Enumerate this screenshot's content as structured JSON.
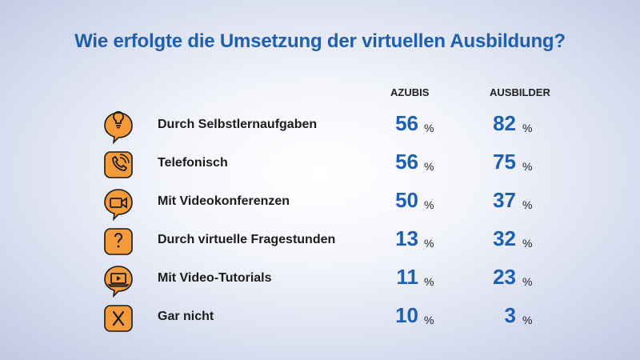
{
  "title": "Wie erfolgte die Umsetzung der virtuellen Ausbildung?",
  "colors": {
    "accent": "#1f5fae",
    "icon_fill": "#f39a3b",
    "icon_stroke": "#1a1a1a"
  },
  "chart_data": {
    "type": "table",
    "title": "Wie erfolgte die Umsetzung der virtuellen Ausbildung?",
    "columns": [
      "AZUBIS",
      "AUSBILDER"
    ],
    "unit": "%",
    "rows": [
      {
        "label": "Durch Selbstlernaufgaben",
        "icon": "lightbulb-icon",
        "azubis": 56,
        "ausbilder": 82
      },
      {
        "label": "Telefonisch",
        "icon": "phone-icon",
        "azubis": 56,
        "ausbilder": 75
      },
      {
        "label": "Mit Videokonferenzen",
        "icon": "video-camera-icon",
        "azubis": 50,
        "ausbilder": 37
      },
      {
        "label": "Durch virtuelle Fragestunden",
        "icon": "question-bubble-icon",
        "azubis": 13,
        "ausbilder": 32
      },
      {
        "label": "Mit Video-Tutorials",
        "icon": "laptop-play-icon",
        "azubis": 11,
        "ausbilder": 23
      },
      {
        "label": "Gar nicht",
        "icon": "cross-icon",
        "azubis": 10,
        "ausbilder": 3
      }
    ]
  }
}
